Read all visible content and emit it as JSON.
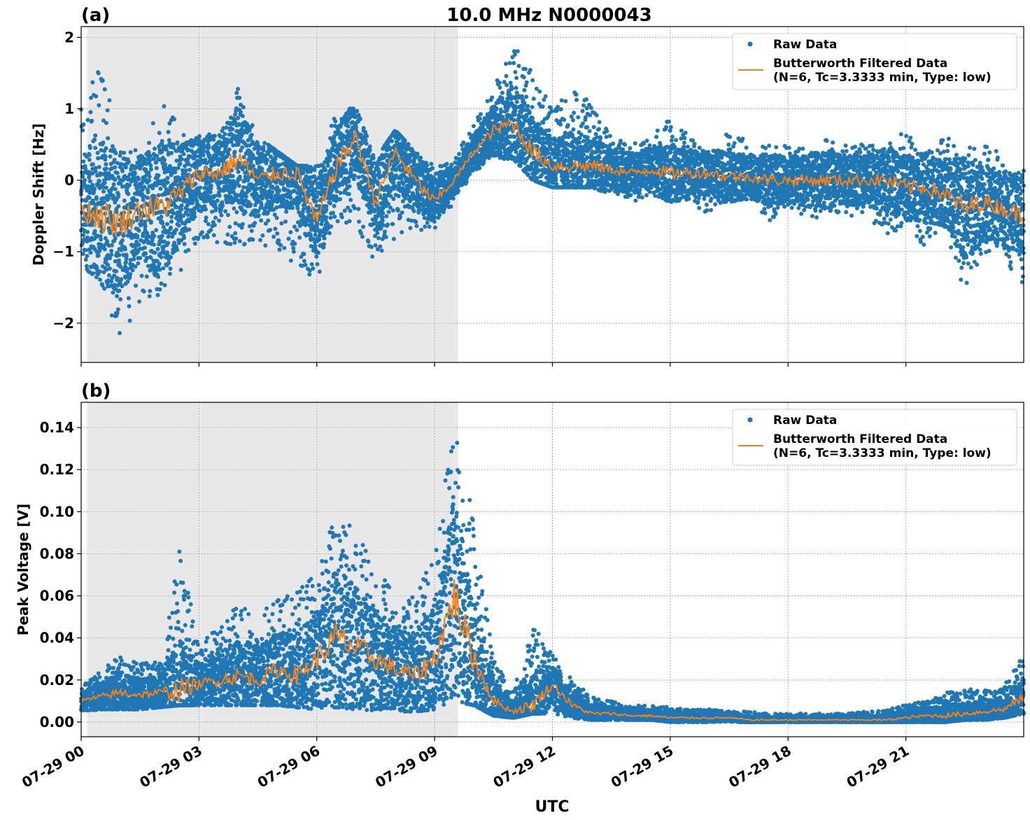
{
  "figure": {
    "title": "10.0 MHz N0000043",
    "xlabel": "UTC",
    "colors": {
      "raw": "#1f77b4",
      "filtered": "#ff7f0e",
      "shade": "#e8e8e8",
      "grid": "#b0b0b0"
    }
  },
  "chart_data": [
    {
      "type": "scatter",
      "panel_label": "(a)",
      "ylabel": "Doppler Shift [Hz]",
      "ylim": [
        -2.55,
        2.15
      ],
      "xlim_hours": [
        0,
        24
      ],
      "yticks": [
        2,
        1,
        0,
        -1,
        -2
      ],
      "ytick_labels": [
        "2",
        "1",
        "0",
        "−1",
        "−2"
      ],
      "xtick_hours": [
        0,
        3,
        6,
        9,
        12,
        15,
        18,
        21
      ],
      "grid": true,
      "legend_position": "top-right",
      "legend": {
        "raw": "Raw Data",
        "filtered_line1": "Butterworth Filtered Data",
        "filtered_line2": "(N=6, Tc=3.3333 min, Type: low)"
      },
      "shaded_hours": [
        0.15,
        9.6
      ],
      "series": [
        {
          "name": "Butterworth Filtered Data",
          "x_hours": [
            0.0,
            0.5,
            1.0,
            1.5,
            2.0,
            2.5,
            3.0,
            3.5,
            4.0,
            4.5,
            5.0,
            5.5,
            6.0,
            6.5,
            7.0,
            7.5,
            8.0,
            8.5,
            9.0,
            9.5,
            10.0,
            10.5,
            11.0,
            11.5,
            12.0,
            12.5,
            13.0,
            13.5,
            14.0,
            14.5,
            15.0,
            15.5,
            16.0,
            16.5,
            17.0,
            17.5,
            18.0,
            18.5,
            19.0,
            19.5,
            20.0,
            20.5,
            21.0,
            21.5,
            22.0,
            22.5,
            23.0,
            23.5,
            24.0
          ],
          "y": [
            -0.4,
            -0.5,
            -0.6,
            -0.4,
            -0.4,
            -0.2,
            0.1,
            0.1,
            0.3,
            0.0,
            0.1,
            0.1,
            -0.6,
            0.2,
            0.6,
            -0.3,
            0.4,
            0.0,
            -0.3,
            0.0,
            0.4,
            0.7,
            0.8,
            0.4,
            0.2,
            0.2,
            0.2,
            0.15,
            0.1,
            0.15,
            0.1,
            0.1,
            0.1,
            0.05,
            0.05,
            0.0,
            0.0,
            0.0,
            0.0,
            0.0,
            0.0,
            0.0,
            -0.1,
            -0.1,
            -0.2,
            -0.4,
            -0.3,
            -0.4,
            -0.5
          ]
        },
        {
          "name": "Raw Data",
          "x_hours": [
            0.0,
            0.5,
            1.0,
            1.5,
            2.0,
            2.5,
            3.0,
            3.5,
            4.0,
            4.5,
            5.0,
            5.5,
            6.0,
            6.5,
            7.0,
            7.5,
            8.0,
            8.5,
            9.0,
            9.5,
            10.0,
            10.5,
            11.0,
            11.5,
            12.0,
            12.5,
            13.0,
            13.5,
            14.0,
            14.5,
            15.0,
            15.5,
            16.0,
            16.5,
            17.0,
            17.5,
            18.0,
            18.5,
            19.0,
            19.5,
            20.0,
            20.5,
            21.0,
            21.5,
            22.0,
            22.5,
            23.0,
            23.5,
            24.0
          ],
          "y_min": [
            -1.2,
            -1.4,
            -2.3,
            -1.7,
            -1.6,
            -1.3,
            -0.8,
            -0.9,
            -0.9,
            -0.9,
            -1.0,
            -1.2,
            -1.4,
            -0.6,
            -0.6,
            -1.2,
            -0.8,
            -0.7,
            -0.7,
            -0.3,
            0.1,
            0.3,
            0.3,
            0.0,
            -0.1,
            -0.1,
            -0.1,
            -0.2,
            -0.3,
            -0.3,
            -0.3,
            -0.3,
            -0.5,
            -0.3,
            -0.3,
            -0.6,
            -0.4,
            -0.6,
            -0.5,
            -0.5,
            -0.5,
            -0.8,
            -0.6,
            -1.0,
            -0.7,
            -1.6,
            -1.0,
            -1.1,
            -1.5
          ],
          "y_max": [
            1.0,
            1.65,
            0.5,
            0.4,
            1.25,
            0.8,
            0.7,
            0.6,
            1.3,
            0.6,
            0.4,
            0.2,
            0.2,
            1.0,
            1.0,
            0.3,
            0.7,
            0.4,
            0.2,
            0.3,
            0.8,
            1.3,
            1.95,
            1.5,
            1.0,
            1.25,
            1.1,
            0.6,
            0.5,
            0.6,
            0.9,
            0.6,
            0.4,
            0.8,
            0.5,
            0.5,
            0.5,
            0.5,
            0.6,
            0.5,
            0.5,
            0.5,
            0.7,
            0.4,
            0.6,
            0.5,
            0.5,
            0.4,
            0.2
          ]
        }
      ]
    },
    {
      "type": "scatter",
      "panel_label": "(b)",
      "ylabel": "Peak Voltage [V]",
      "ylim": [
        -0.007,
        0.152
      ],
      "xlim_hours": [
        0,
        24
      ],
      "yticks": [
        0.14,
        0.12,
        0.1,
        0.08,
        0.06,
        0.04,
        0.02,
        0.0
      ],
      "ytick_labels": [
        "0.14",
        "0.12",
        "0.10",
        "0.08",
        "0.06",
        "0.04",
        "0.02",
        "0.00"
      ],
      "xtick_hours": [
        0,
        3,
        6,
        9,
        12,
        15,
        18,
        21
      ],
      "xtick_labels": [
        "07-29 00",
        "07-29 03",
        "07-29 06",
        "07-29 09",
        "07-29 12",
        "07-29 15",
        "07-29 18",
        "07-29 21"
      ],
      "grid": true,
      "legend_position": "top-right",
      "legend": {
        "raw": "Raw Data",
        "filtered_line1": "Butterworth Filtered Data",
        "filtered_line2": "(N=6, Tc=3.3333 min, Type: low)"
      },
      "shaded_hours": [
        0.15,
        9.6
      ],
      "series": [
        {
          "name": "Butterworth Filtered Data",
          "x_hours": [
            0.0,
            0.5,
            1.0,
            1.5,
            2.0,
            2.5,
            3.0,
            3.5,
            4.0,
            4.5,
            5.0,
            5.5,
            6.0,
            6.5,
            7.0,
            7.5,
            8.0,
            8.5,
            9.0,
            9.5,
            10.0,
            10.5,
            11.0,
            11.5,
            12.0,
            12.5,
            13.0,
            13.5,
            14.0,
            14.5,
            15.0,
            15.5,
            16.0,
            16.5,
            17.0,
            17.5,
            18.0,
            18.5,
            19.0,
            19.5,
            20.0,
            20.5,
            21.0,
            21.5,
            22.0,
            22.5,
            23.0,
            23.5,
            24.0
          ],
          "y": [
            0.01,
            0.012,
            0.014,
            0.013,
            0.014,
            0.015,
            0.018,
            0.02,
            0.022,
            0.02,
            0.025,
            0.022,
            0.03,
            0.04,
            0.035,
            0.03,
            0.025,
            0.022,
            0.03,
            0.06,
            0.03,
            0.01,
            0.005,
            0.008,
            0.018,
            0.008,
            0.004,
            0.004,
            0.003,
            0.003,
            0.002,
            0.002,
            0.002,
            0.002,
            0.001,
            0.001,
            0.001,
            0.001,
            0.001,
            0.001,
            0.001,
            0.001,
            0.002,
            0.003,
            0.003,
            0.004,
            0.005,
            0.006,
            0.012
          ]
        },
        {
          "name": "Raw Data",
          "x_hours": [
            0.0,
            0.5,
            1.0,
            1.5,
            2.0,
            2.5,
            3.0,
            3.5,
            4.0,
            4.5,
            5.0,
            5.5,
            6.0,
            6.5,
            7.0,
            7.5,
            8.0,
            8.5,
            9.0,
            9.5,
            10.0,
            10.5,
            11.0,
            11.5,
            12.0,
            12.5,
            13.0,
            13.5,
            14.0,
            14.5,
            15.0,
            15.5,
            16.0,
            16.5,
            17.0,
            17.5,
            18.0,
            18.5,
            19.0,
            19.5,
            20.0,
            20.5,
            21.0,
            21.5,
            22.0,
            22.5,
            23.0,
            23.5,
            24.0
          ],
          "y_min": [
            0.005,
            0.006,
            0.006,
            0.006,
            0.007,
            0.008,
            0.008,
            0.008,
            0.008,
            0.008,
            0.008,
            0.007,
            0.006,
            0.007,
            0.006,
            0.005,
            0.005,
            0.005,
            0.006,
            0.01,
            0.008,
            0.003,
            0.002,
            0.004,
            0.004,
            0.002,
            0.001,
            0.001,
            0.001,
            0.001,
            0.0,
            0.0,
            0.0,
            0.0,
            0.0,
            0.0,
            0.0,
            0.0,
            0.0,
            0.0,
            0.0,
            0.0,
            0.0,
            0.0,
            0.0,
            0.001,
            0.001,
            0.002,
            0.004
          ],
          "y_max": [
            0.018,
            0.024,
            0.033,
            0.028,
            0.03,
            0.084,
            0.038,
            0.046,
            0.056,
            0.052,
            0.058,
            0.062,
            0.072,
            0.104,
            0.089,
            0.075,
            0.06,
            0.06,
            0.08,
            0.145,
            0.095,
            0.03,
            0.015,
            0.046,
            0.032,
            0.02,
            0.012,
            0.01,
            0.008,
            0.008,
            0.007,
            0.006,
            0.006,
            0.005,
            0.005,
            0.004,
            0.004,
            0.004,
            0.004,
            0.004,
            0.005,
            0.006,
            0.008,
            0.01,
            0.014,
            0.016,
            0.015,
            0.018,
            0.032
          ]
        }
      ]
    }
  ]
}
